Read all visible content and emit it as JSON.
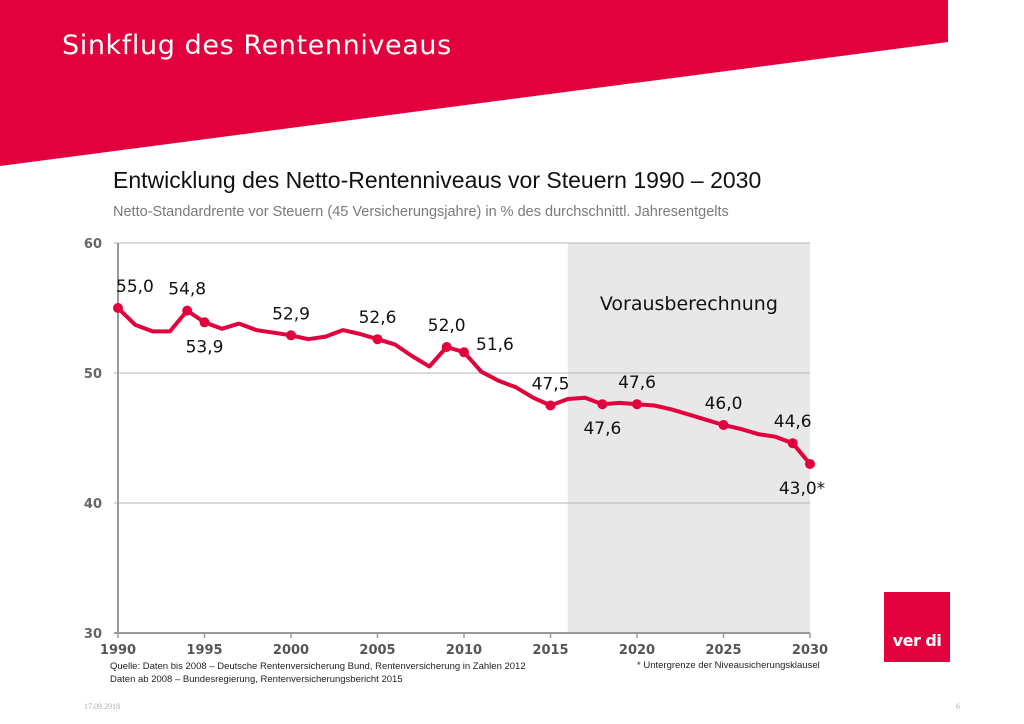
{
  "slide": {
    "title": "Sinkflug des Rentenniveaus",
    "date": "17.09.2018",
    "page_number": "6",
    "logo_text": "ver di",
    "brand_color": "#e2003d"
  },
  "source_text": {
    "line1": "Quelle: Daten bis 2008 – Deutsche Rentenversicherung Bund, Rentenversicherung in Zahlen 2012",
    "line2": "Daten ab 2008 – Bundesregierung, Rentenversicherungsbericht 2015"
  },
  "footnote": "* Untergrenze der Niveausicherungsklausel",
  "chart_data": {
    "type": "line",
    "title": "Entwicklung des Netto-Rentenniveaus vor Steuern 1990 – 2030",
    "subtitle": "Netto-Standardrente vor Steuern (45 Versicherungsjahre) in % des durchschnittl. Jahresentgelts",
    "xlabel": "",
    "ylabel": "",
    "xlim": [
      1990,
      2030
    ],
    "ylim": [
      30,
      60
    ],
    "x_ticks": [
      "1990",
      "1995",
      "2000",
      "2005",
      "2010",
      "2015",
      "2020",
      "2025",
      "2030"
    ],
    "y_ticks": [
      "30",
      "40",
      "50",
      "60"
    ],
    "grid": "horizontal",
    "line_color": "#e2003d",
    "forecast_region": {
      "label": "Vorausberechnung",
      "from": 2016,
      "to": 2030,
      "color": "#e8e8e8"
    },
    "series": [
      {
        "x": [
          1990,
          1991,
          1992,
          1993,
          1994,
          1995,
          1996,
          1997,
          1998,
          1999,
          2000,
          2001,
          2002,
          2003,
          2004,
          2005,
          2006,
          2007,
          2008,
          2009,
          2010,
          2011,
          2012,
          2013,
          2014,
          2015,
          2016,
          2017,
          2018,
          2019,
          2020,
          2021,
          2022,
          2023,
          2024,
          2025,
          2026,
          2027,
          2028,
          2029,
          2030
        ],
        "y": [
          55.0,
          53.7,
          53.2,
          53.2,
          54.8,
          53.9,
          53.4,
          53.8,
          53.3,
          53.1,
          52.9,
          52.6,
          52.8,
          53.3,
          53.0,
          52.6,
          52.2,
          51.3,
          50.5,
          52.0,
          51.6,
          50.1,
          49.4,
          48.9,
          48.1,
          47.5,
          48.0,
          48.1,
          47.6,
          47.7,
          47.6,
          47.5,
          47.2,
          46.8,
          46.4,
          46.0,
          45.7,
          45.3,
          45.1,
          44.6,
          43.0
        ]
      }
    ],
    "annotations": [
      {
        "year": 1990,
        "value": 55.0,
        "label": "55,0",
        "position": "above"
      },
      {
        "year": 1994,
        "value": 54.8,
        "label": "54,8",
        "position": "above"
      },
      {
        "year": 1995,
        "value": 53.9,
        "label": "53,9",
        "position": "below"
      },
      {
        "year": 2000,
        "value": 52.9,
        "label": "52,9",
        "position": "above"
      },
      {
        "year": 2005,
        "value": 52.6,
        "label": "52,6",
        "position": "above"
      },
      {
        "year": 2009,
        "value": 52.0,
        "label": "52,0",
        "position": "above"
      },
      {
        "year": 2010,
        "value": 51.6,
        "label": "51,6",
        "position": "right"
      },
      {
        "year": 2015,
        "value": 47.5,
        "label": "47,5",
        "position": "above"
      },
      {
        "year": 2018,
        "value": 47.6,
        "label": "47,6",
        "position": "below"
      },
      {
        "year": 2020,
        "value": 47.6,
        "label": "47,6",
        "position": "above"
      },
      {
        "year": 2025,
        "value": 46.0,
        "label": "46,0",
        "position": "above"
      },
      {
        "year": 2029,
        "value": 44.6,
        "label": "44,6",
        "position": "above"
      },
      {
        "year": 2030,
        "value": 43.0,
        "label": "43,0*",
        "position": "below"
      }
    ]
  }
}
